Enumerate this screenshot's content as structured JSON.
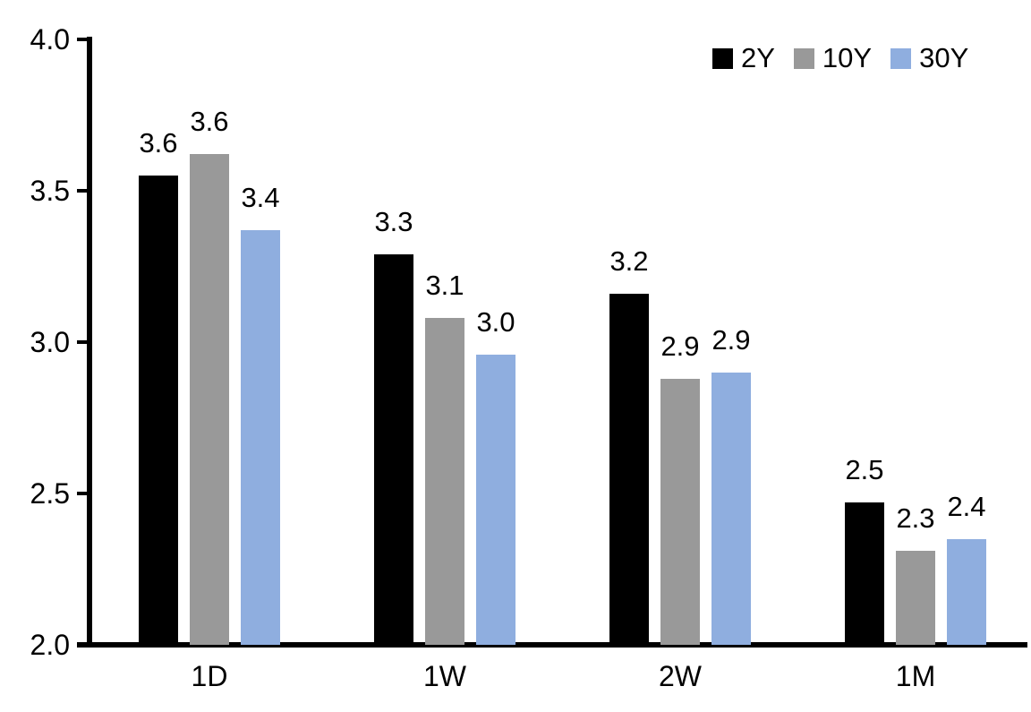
{
  "chart_data": {
    "type": "bar",
    "title": "",
    "xlabel": "",
    "ylabel": "",
    "categories": [
      "1D",
      "1W",
      "2W",
      "1M"
    ],
    "series": [
      {
        "name": "2Y",
        "color": "#000000",
        "values": [
          3.55,
          3.29,
          3.16,
          2.47
        ],
        "data_labels": [
          "3.6",
          "3.3",
          "3.2",
          "2.5"
        ]
      },
      {
        "name": "10Y",
        "color": "#999999",
        "values": [
          3.62,
          3.08,
          2.88,
          2.31
        ],
        "data_labels": [
          "3.6",
          "3.1",
          "2.9",
          "2.3"
        ]
      },
      {
        "name": "30Y",
        "color": "#8FAEDF",
        "values": [
          3.37,
          2.96,
          2.9,
          2.35
        ],
        "data_labels": [
          "3.4",
          "3.0",
          "2.9",
          "2.4"
        ]
      }
    ],
    "ylim": [
      2.0,
      4.0
    ],
    "ytick_labels": [
      "4.0",
      "3.5",
      "3.0",
      "2.5",
      "2.0"
    ],
    "ytick_values": [
      4.0,
      3.5,
      3.0,
      2.5,
      2.0
    ],
    "grid": false,
    "legend_position": "top-right",
    "axis_color": "#000000",
    "text_color": "#000000"
  }
}
